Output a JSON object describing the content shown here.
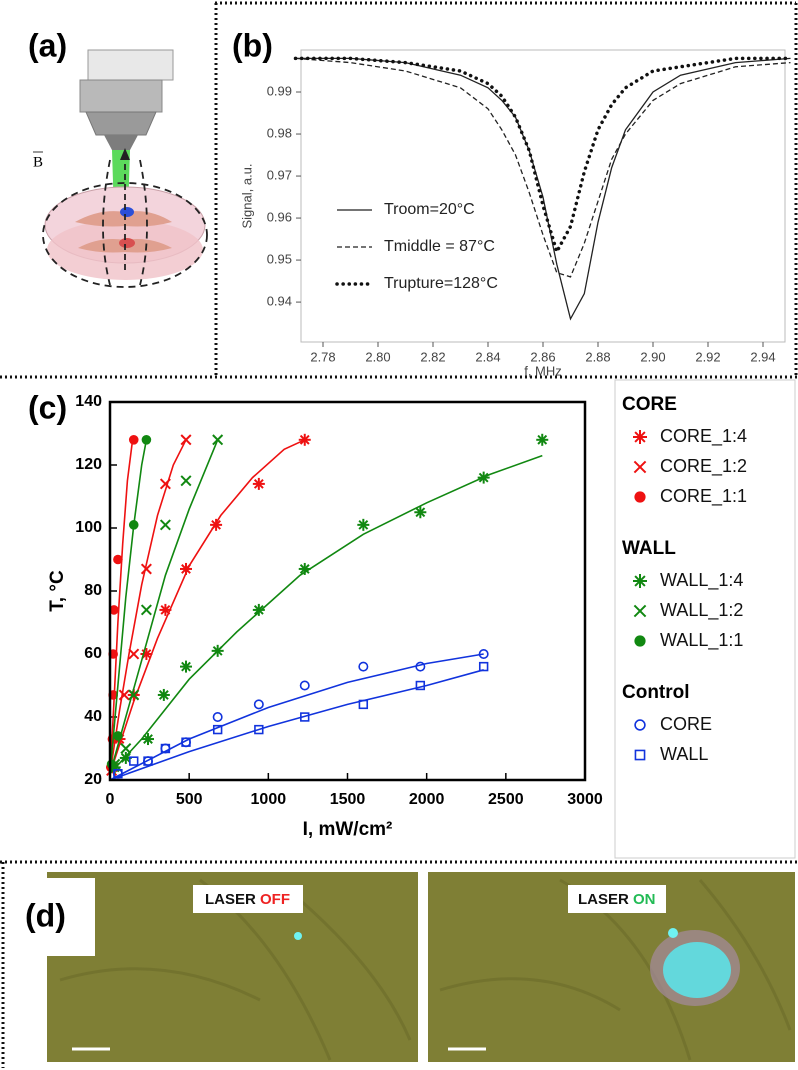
{
  "panel_labels": [
    "(a)",
    "(b)",
    "(c)",
    "(d)"
  ],
  "panel_a": {
    "field": "B"
  },
  "panel_d": {
    "left": {
      "prefix": "LASER",
      "state": "OFF"
    },
    "right": {
      "prefix": "LASER",
      "state": "ON"
    }
  },
  "chart_data": [
    {
      "type": "line",
      "xlabel": "f, MHz",
      "ylabel": "Signal, a.u.",
      "x": [
        2.77,
        2.79,
        2.81,
        2.83,
        2.84,
        2.845,
        2.85,
        2.855,
        2.86,
        2.865,
        2.87,
        2.875,
        2.88,
        2.885,
        2.89,
        2.9,
        2.91,
        2.93,
        2.95
      ],
      "xlim": [
        2.772,
        2.948
      ],
      "ylim": [
        0.9305,
        1.0
      ],
      "xticks": [
        2.78,
        {
          "value": 2.8,
          "label": "2.80"
        },
        2.82,
        2.84,
        2.86,
        2.88,
        {
          "value": 2.9,
          "label": "2.90"
        },
        2.92,
        2.94
      ],
      "yticks": [
        0.94,
        0.95,
        0.96,
        0.97,
        0.98,
        0.99
      ],
      "series": [
        {
          "name": "Troom=20°C",
          "color": "#222222",
          "dash": "solid",
          "values": [
            0.998,
            0.998,
            0.997,
            0.994,
            0.991,
            0.988,
            0.984,
            0.976,
            0.965,
            0.949,
            0.936,
            0.942,
            0.959,
            0.972,
            0.981,
            0.99,
            0.994,
            0.997,
            0.998
          ]
        },
        {
          "name": "Tmiddle = 87°C",
          "color": "#222222",
          "dash": "dashed",
          "values": [
            0.998,
            0.997,
            0.995,
            0.991,
            0.986,
            0.981,
            0.975,
            0.966,
            0.956,
            0.947,
            0.946,
            0.954,
            0.964,
            0.974,
            0.98,
            0.988,
            0.992,
            0.996,
            0.997
          ]
        },
        {
          "name": "Trupture=128°C",
          "color": "#111111",
          "dash": "dotted",
          "values": [
            0.998,
            0.998,
            0.997,
            0.995,
            0.992,
            0.989,
            0.984,
            0.976,
            0.963,
            0.952,
            0.958,
            0.971,
            0.981,
            0.987,
            0.991,
            0.995,
            0.996,
            0.998,
            0.998
          ]
        }
      ]
    },
    {
      "type": "scatter",
      "xlabel": "I, mW/cm²",
      "ylabel": "T, °C",
      "xlim": [
        0,
        3000
      ],
      "ylim": [
        20,
        140
      ],
      "xticks": [
        0,
        500,
        1000,
        1500,
        2000,
        2500,
        3000
      ],
      "yticks": [
        20,
        40,
        60,
        80,
        100,
        120,
        140
      ],
      "groups": [
        {
          "title": "CORE",
          "series": [
            {
              "name": "CORE_1:4",
              "color": "#ee1111",
              "marker": "asterisk",
              "x": [
                20,
                60,
                150,
                230,
                350,
                480,
                670,
                940,
                1230
              ],
              "values": [
                24,
                33,
                47,
                60,
                74,
                87,
                101,
                114,
                128
              ],
              "fit": {
                "x": [
                  0,
                  150,
                  300,
                  500,
                  700,
                  900,
                  1100,
                  1230
                ],
                "y": [
                  22,
                  45,
                  65,
                  88,
                  104,
                  116,
                  125,
                  128
                ]
              }
            },
            {
              "name": "CORE_1:2",
              "color": "#ee1111",
              "marker": "x",
              "x": [
                10,
                40,
                90,
                150,
                230,
                350,
                480
              ],
              "values": [
                23,
                33,
                47,
                60,
                87,
                114,
                128
              ],
              "fit": {
                "x": [
                  0,
                  60,
                  120,
                  200,
                  300,
                  400,
                  480
                ],
                "y": [
                  22,
                  42,
                  60,
                  82,
                  104,
                  120,
                  128
                ]
              }
            },
            {
              "name": "CORE_1:1",
              "color": "#ee1111",
              "marker": "circle",
              "x": [
                5,
                15,
                20,
                20,
                25,
                50,
                150
              ],
              "values": [
                24,
                33,
                47,
                60,
                74,
                90,
                128
              ],
              "fit": {
                "x": [
                  0,
                  20,
                  50,
                  80,
                  110,
                  140,
                  150
                ],
                "y": [
                  22,
                  40,
                  70,
                  95,
                  115,
                  127,
                  128
                ]
              }
            }
          ]
        },
        {
          "title": "WALL",
          "series": [
            {
              "name": "WALL_1:4",
              "color": "#118811",
              "marker": "asterisk",
              "x": [
                30,
                100,
                240,
                340,
                480,
                680,
                940,
                1230,
                1600,
                1960,
                2360,
                2730
              ],
              "values": [
                24,
                27,
                33,
                47,
                56,
                61,
                74,
                87,
                101,
                105,
                116,
                128
              ],
              "fit": {
                "x": [
                  0,
                  200,
                  500,
                  800,
                  1200,
                  1600,
                  2000,
                  2400,
                  2730
                ],
                "y": [
                  22,
                  33,
                  52,
                  67,
                  85,
                  98,
                  108,
                  117,
                  123
                ]
              }
            },
            {
              "name": "WALL_1:2",
              "color": "#118811",
              "marker": "x",
              "x": [
                30,
                100,
                150,
                230,
                350,
                480,
                680
              ],
              "values": [
                25,
                30,
                47,
                74,
                101,
                115,
                128
              ],
              "fit": {
                "x": [
                  0,
                  100,
                  200,
                  350,
                  500,
                  680
                ],
                "y": [
                  22,
                  40,
                  58,
                  85,
                  106,
                  128
                ]
              }
            },
            {
              "name": "WALL_1:1",
              "color": "#118811",
              "marker": "circle",
              "x": [
                10,
                50,
                150,
                230
              ],
              "values": [
                25,
                34,
                101,
                128
              ],
              "fit": {
                "x": [
                  0,
                  50,
                  100,
                  150,
                  200,
                  230
                ],
                "y": [
                  22,
                  50,
                  78,
                  101,
                  120,
                  128
                ]
              }
            }
          ]
        },
        {
          "title": "Control",
          "series": [
            {
              "name": "CORE",
              "color": "#1133dd",
              "marker": "circle-open",
              "x": [
                50,
                240,
                350,
                480,
                680,
                940,
                1230,
                1600,
                1960,
                2360
              ],
              "values": [
                22,
                26,
                30,
                32,
                40,
                44,
                50,
                56,
                56,
                60
              ],
              "fit": {
                "x": [
                  0,
                  500,
                  1000,
                  1500,
                  2000,
                  2360
                ],
                "y": [
                  20,
                  33,
                  43,
                  51,
                  57,
                  60
                ]
              }
            },
            {
              "name": "WALL",
              "color": "#1133dd",
              "marker": "square-open",
              "x": [
                50,
                150,
                240,
                350,
                480,
                680,
                940,
                1230,
                1600,
                1960,
                2360
              ],
              "values": [
                22,
                26,
                26,
                30,
                32,
                36,
                36,
                40,
                44,
                50,
                56
              ],
              "fit": {
                "x": [
                  0,
                  500,
                  1000,
                  1500,
                  2000,
                  2360
                ],
                "y": [
                  20,
                  29,
                  37,
                  44,
                  50,
                  55
                ]
              }
            }
          ]
        }
      ]
    }
  ]
}
